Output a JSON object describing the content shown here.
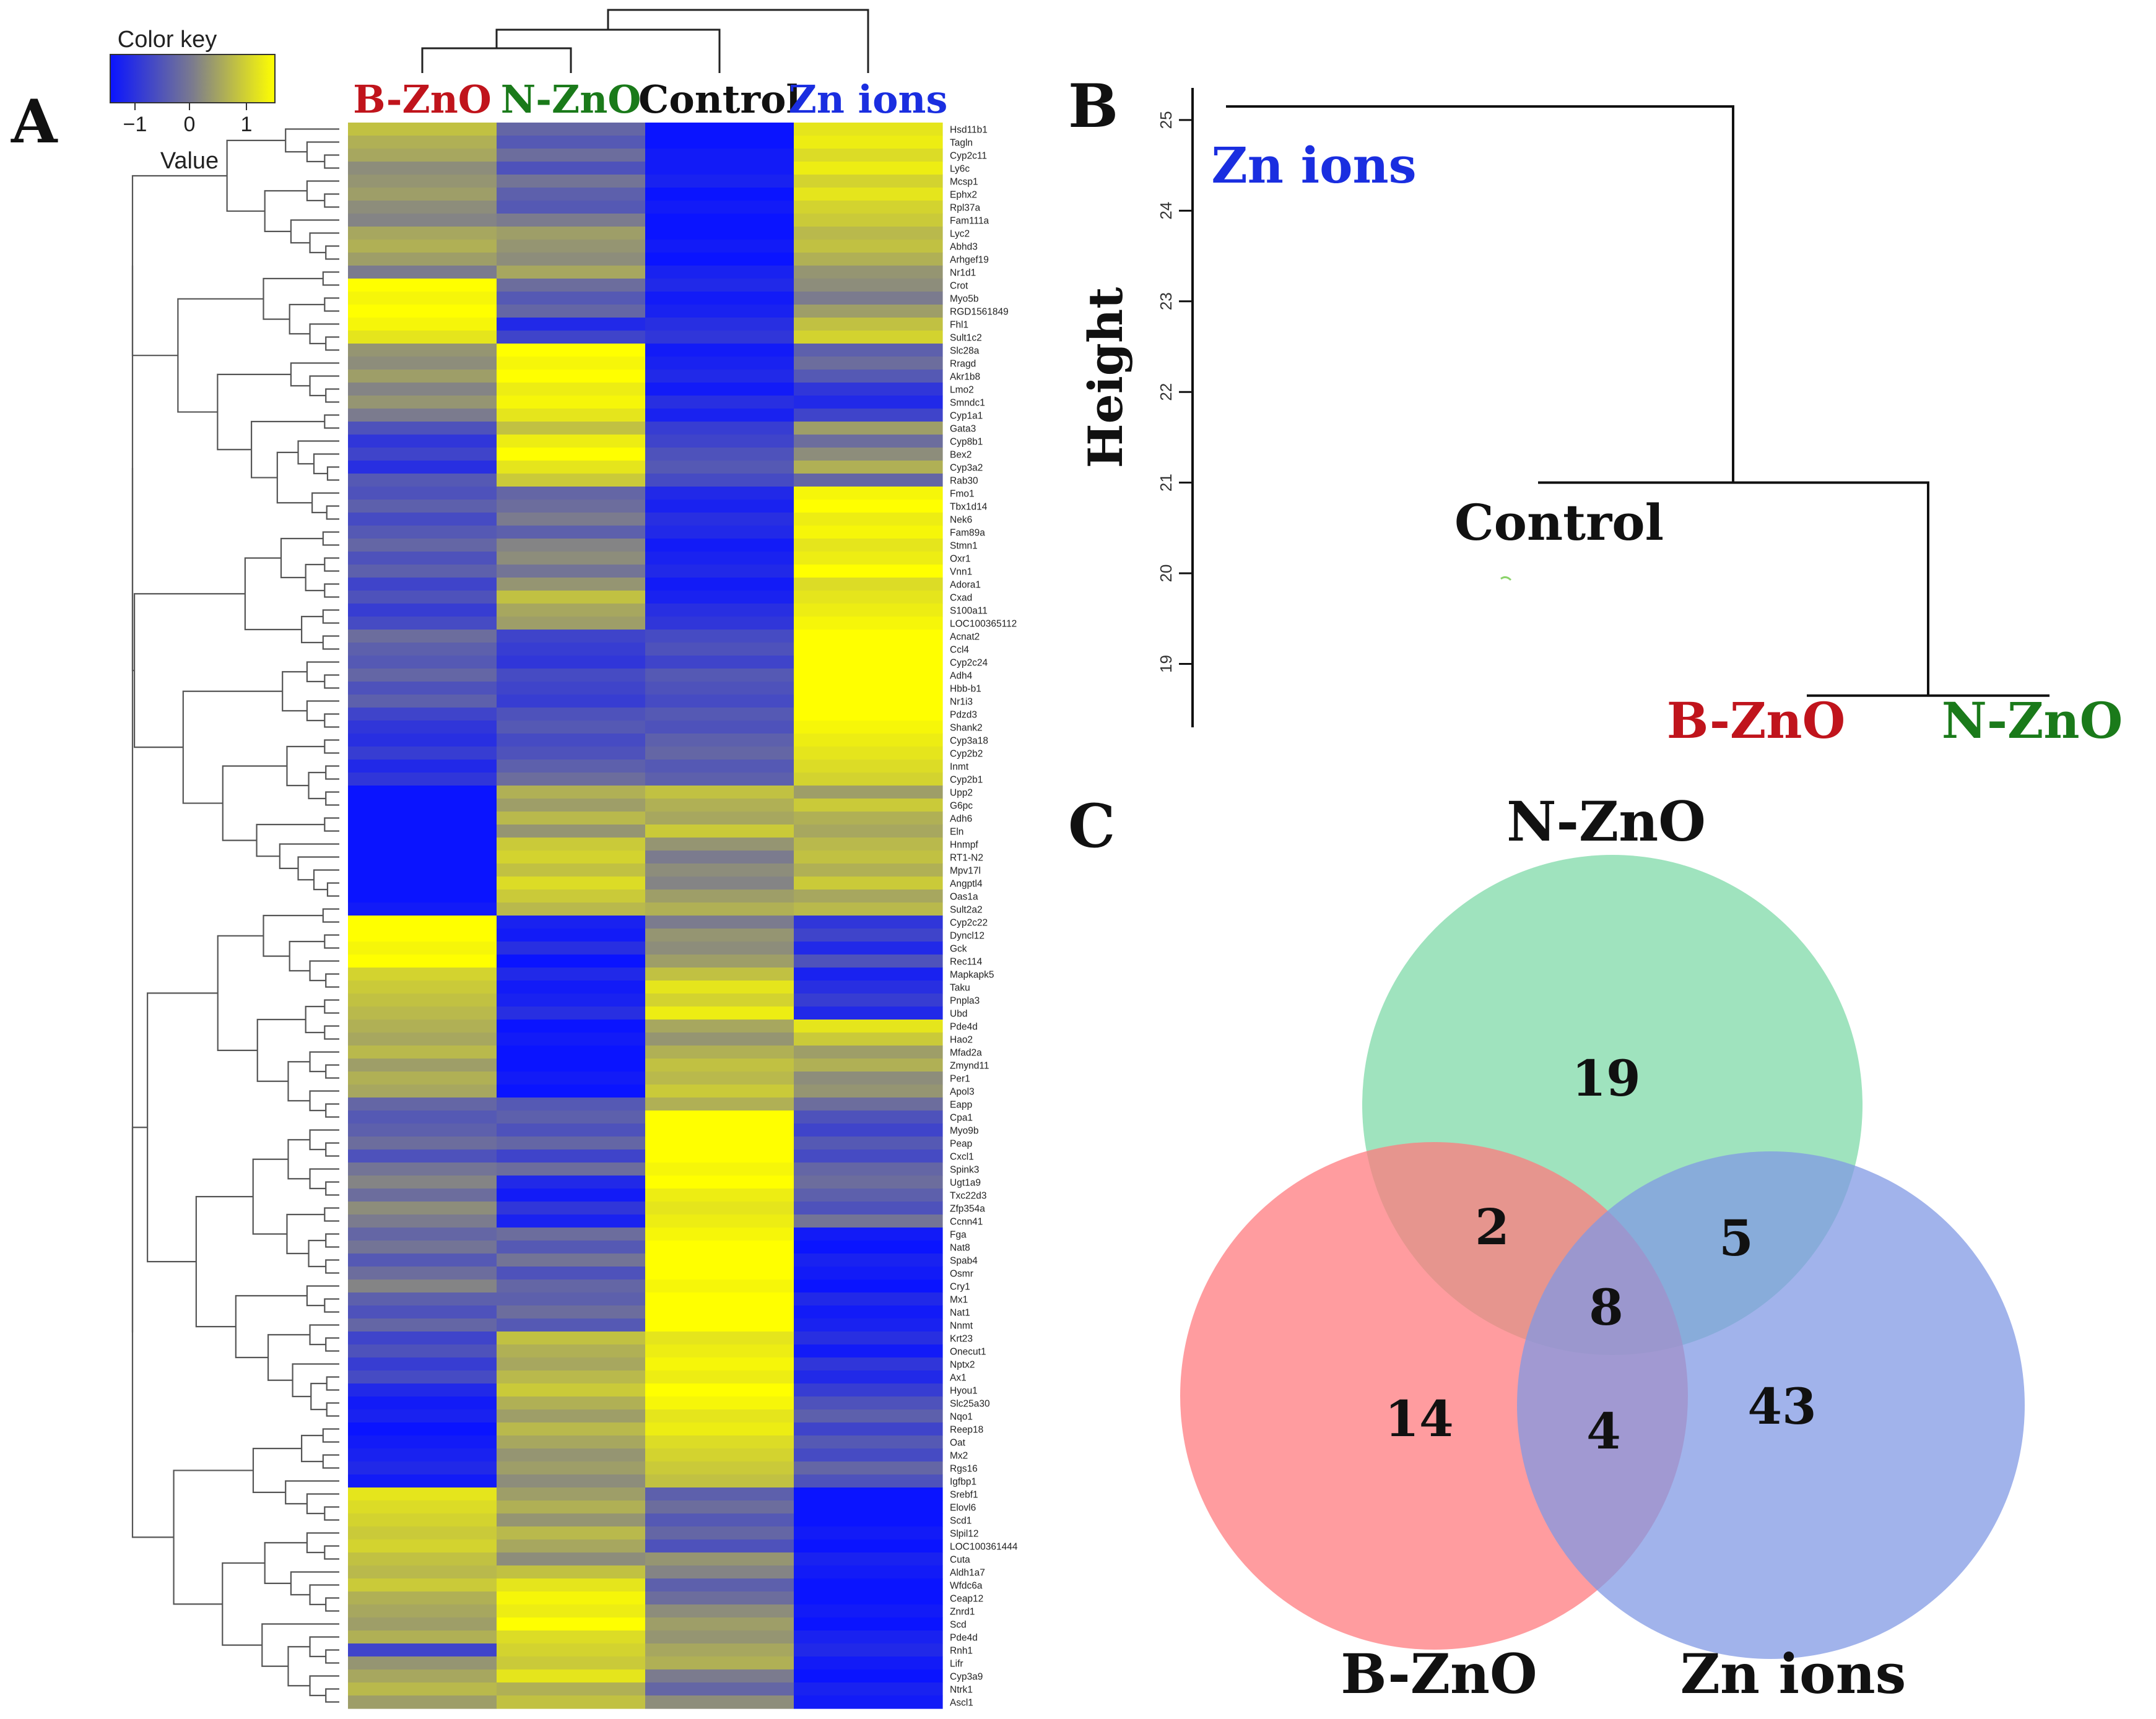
{
  "panels": {
    "a": {
      "letter": "A"
    },
    "b": {
      "letter": "B"
    },
    "c": {
      "letter": "C"
    }
  },
  "color_key": {
    "title": "Color key",
    "value_label": "Value",
    "ticks": [
      "−1",
      "0",
      "1"
    ],
    "colors": {
      "low": "#0a14ff",
      "mid": "#7b7b8e",
      "high": "#ffff00"
    }
  },
  "chart_data": [
    {
      "type": "heatmap",
      "title": "",
      "columns": [
        {
          "name": "B-ZnO",
          "color": "#c0141c"
        },
        {
          "name": "N-ZnO",
          "color": "#1a7a1a"
        },
        {
          "name": "Control",
          "color": "#111111"
        },
        {
          "name": "Zn ions",
          "color": "#1a2ee0"
        }
      ],
      "value_range": [
        -1.5,
        1.5
      ],
      "rows": [
        [
          "Hsd11b1",
          0.8,
          -0.3,
          -1.5,
          1.2
        ],
        [
          "Tagln",
          0.6,
          -0.5,
          -1.5,
          1.3
        ],
        [
          "Cyp2c11",
          0.5,
          -0.2,
          -1.4,
          1.1
        ],
        [
          "Ly6c",
          0.2,
          -0.6,
          -1.4,
          1.3
        ],
        [
          "Mcsp1",
          0.3,
          -0.1,
          -1.3,
          1.0
        ],
        [
          "Ephx2",
          0.4,
          -0.4,
          -1.5,
          1.2
        ],
        [
          "Rpl37a",
          0.2,
          -0.5,
          -1.4,
          1.0
        ],
        [
          "Fam111a",
          0.1,
          0.0,
          -1.5,
          0.9
        ],
        [
          "Lyc2",
          0.5,
          0.4,
          -1.5,
          0.7
        ],
        [
          "Abhd3",
          0.6,
          0.3,
          -1.4,
          0.8
        ],
        [
          "Arhgef19",
          0.4,
          0.2,
          -1.5,
          0.6
        ],
        [
          "Nr1d1",
          0.0,
          0.5,
          -1.3,
          0.3
        ],
        [
          "Crot",
          1.5,
          -0.2,
          -1.2,
          0.2
        ],
        [
          "Myo5b",
          1.4,
          -0.5,
          -1.4,
          0.0
        ],
        [
          "RGD1561849",
          1.5,
          -0.3,
          -1.3,
          0.4
        ],
        [
          "Fhl1",
          1.4,
          -1.2,
          -1.1,
          0.8
        ],
        [
          "Sult1c2",
          1.2,
          -0.8,
          -1.0,
          1.0
        ],
        [
          "Slc28a",
          0.3,
          1.5,
          -1.4,
          -0.4
        ],
        [
          "Rragd",
          0.2,
          1.4,
          -1.3,
          -0.2
        ],
        [
          "Akr1b8",
          0.4,
          1.5,
          -1.2,
          -0.5
        ],
        [
          "Lmo2",
          0.1,
          1.3,
          -1.4,
          -1.0
        ],
        [
          "Smndc1",
          0.3,
          1.4,
          -1.1,
          -1.2
        ],
        [
          "Cyp1a1",
          0.0,
          1.2,
          -1.3,
          -0.8
        ],
        [
          "Gata3",
          -0.6,
          0.8,
          -0.9,
          0.4
        ],
        [
          "Cyp8b1",
          -1.0,
          1.3,
          -0.8,
          -0.2
        ],
        [
          "Bex2",
          -0.8,
          1.6,
          -0.6,
          0.2
        ],
        [
          "Cyp3a2",
          -1.1,
          1.2,
          -0.5,
          0.6
        ],
        [
          "Rab30",
          -0.5,
          0.9,
          -0.7,
          -0.3
        ],
        [
          "Fmo1",
          -0.6,
          -0.3,
          -1.2,
          1.4
        ],
        [
          "Tbx1d14",
          -0.4,
          -0.2,
          -1.3,
          1.5
        ],
        [
          "Nek6",
          -0.7,
          0.0,
          -1.1,
          1.3
        ],
        [
          "Fam89a",
          -0.5,
          -0.4,
          -1.2,
          1.4
        ],
        [
          "Stmn1",
          -0.3,
          0.1,
          -1.4,
          1.2
        ],
        [
          "Oxr1",
          -0.6,
          0.2,
          -1.3,
          1.3
        ],
        [
          "Vnn1",
          -0.4,
          -0.1,
          -1.2,
          1.5
        ],
        [
          "Adora1",
          -0.8,
          0.3,
          -1.4,
          1.1
        ],
        [
          "Cxad",
          -0.6,
          0.8,
          -1.3,
          1.2
        ],
        [
          "S100a11",
          -0.9,
          0.5,
          -1.1,
          1.3
        ],
        [
          "LOC100365112",
          -0.7,
          0.4,
          -1.0,
          1.4
        ],
        [
          "Acnat2",
          -0.2,
          -0.8,
          -0.7,
          1.5
        ],
        [
          "Ccl4",
          -0.4,
          -0.9,
          -0.6,
          1.6
        ],
        [
          "Cyp2c24",
          -0.5,
          -1.0,
          -0.8,
          1.5
        ],
        [
          "Adh4",
          -0.3,
          -0.7,
          -0.5,
          1.6
        ],
        [
          "Hbb-b1",
          -0.6,
          -0.8,
          -0.6,
          1.5
        ],
        [
          "Nr1i3",
          -0.4,
          -0.9,
          -0.7,
          1.6
        ],
        [
          "Pdzd3",
          -0.8,
          -0.6,
          -0.5,
          1.5
        ],
        [
          "Shank2",
          -1.0,
          -0.5,
          -0.6,
          1.4
        ],
        [
          "Cyp3a18",
          -1.1,
          -0.7,
          -0.4,
          1.3
        ],
        [
          "Cyp2b2",
          -0.9,
          -0.6,
          -0.3,
          1.2
        ],
        [
          "Inmt",
          -1.2,
          -0.4,
          -0.5,
          1.1
        ],
        [
          "Cyp2b1",
          -1.0,
          -0.2,
          -0.4,
          1.0
        ],
        [
          "Upp2",
          -1.5,
          0.6,
          0.8,
          0.4
        ],
        [
          "G6pc",
          -1.6,
          0.4,
          0.6,
          0.9
        ],
        [
          "Adh6",
          -1.5,
          0.7,
          0.5,
          0.6
        ],
        [
          "Eln",
          -1.5,
          0.3,
          0.9,
          0.5
        ],
        [
          "Hnmpf",
          -1.6,
          0.9,
          0.3,
          0.7
        ],
        [
          "RT1-N2",
          -1.5,
          1.0,
          0.0,
          0.8
        ],
        [
          "Mpv17l",
          -1.6,
          0.8,
          0.2,
          0.6
        ],
        [
          "Angptl4",
          -1.5,
          1.1,
          0.1,
          0.9
        ],
        [
          "Oas1a",
          -1.5,
          0.9,
          0.4,
          0.5
        ],
        [
          "Sult2a2",
          -1.4,
          0.7,
          0.6,
          0.7
        ],
        [
          "Cyp2c22",
          1.5,
          -1.3,
          0.0,
          -1.0
        ],
        [
          "Dyncl12",
          1.6,
          -1.4,
          0.3,
          -0.8
        ],
        [
          "Gck",
          1.4,
          -1.1,
          0.2,
          -1.2
        ],
        [
          "Rec114",
          1.5,
          -1.5,
          0.4,
          -0.6
        ],
        [
          "Mapkapk5",
          1.0,
          -1.2,
          0.8,
          -1.3
        ],
        [
          "Taku",
          0.9,
          -1.4,
          1.2,
          -1.1
        ],
        [
          "Pnpla3",
          0.8,
          -1.3,
          1.0,
          -0.9
        ],
        [
          "Ubd",
          0.7,
          -1.1,
          1.3,
          -1.2
        ],
        [
          "Pde4d",
          0.6,
          -1.5,
          0.5,
          1.2
        ],
        [
          "Hao2",
          0.5,
          -1.4,
          0.3,
          0.9
        ],
        [
          "Mfad2a",
          0.7,
          -1.6,
          0.6,
          0.4
        ],
        [
          "Zmynd11",
          0.4,
          -1.5,
          0.8,
          0.6
        ],
        [
          "Per1",
          0.6,
          -1.4,
          0.7,
          0.2
        ],
        [
          "Apol3",
          0.5,
          -1.6,
          0.9,
          0.3
        ],
        [
          "Eapp",
          -0.3,
          -0.5,
          0.6,
          -0.2
        ],
        [
          "Cpa1",
          -0.5,
          -0.4,
          1.6,
          -0.6
        ],
        [
          "Myo9b",
          -0.4,
          -0.6,
          1.5,
          -0.8
        ],
        [
          "Peap",
          -0.2,
          -0.3,
          1.6,
          -0.5
        ],
        [
          "Cxcl1",
          -0.6,
          -0.8,
          1.5,
          -0.7
        ],
        [
          "Spink3",
          -0.1,
          -0.2,
          1.4,
          -0.3
        ],
        [
          "Ugt1a9",
          0.1,
          -1.2,
          1.5,
          -0.2
        ],
        [
          "Txc22d3",
          -0.2,
          -1.4,
          1.3,
          -0.4
        ],
        [
          "Zfp354a",
          0.2,
          -1.0,
          1.2,
          -0.6
        ],
        [
          "Ccnn41",
          0.0,
          -1.3,
          1.3,
          -0.1
        ],
        [
          "Fga",
          -0.3,
          -0.2,
          1.4,
          -1.4
        ],
        [
          "Nat8",
          -0.1,
          -0.5,
          1.5,
          -1.5
        ],
        [
          "Spab4",
          -0.5,
          -0.1,
          1.6,
          -1.3
        ],
        [
          "Osmr",
          -0.2,
          -0.6,
          1.5,
          -1.4
        ],
        [
          "Cry1",
          0.1,
          -0.3,
          1.4,
          -1.5
        ],
        [
          "Mx1",
          -0.4,
          -0.4,
          1.5,
          -1.2
        ],
        [
          "Nat1",
          -0.6,
          -0.2,
          1.6,
          -1.4
        ],
        [
          "Nnmt",
          -0.3,
          -0.5,
          1.5,
          -1.3
        ],
        [
          "Krt23",
          -0.8,
          0.8,
          1.2,
          -1.1
        ],
        [
          "Onecut1",
          -0.6,
          0.6,
          1.3,
          -1.4
        ],
        [
          "Nptx2",
          -0.9,
          0.5,
          1.4,
          -1.0
        ],
        [
          "Ax1",
          -0.7,
          0.7,
          1.3,
          -1.2
        ],
        [
          "Hyou1",
          -1.2,
          0.9,
          1.5,
          -0.9
        ],
        [
          "Slc25a30",
          -1.4,
          0.6,
          1.4,
          -0.6
        ],
        [
          "Nqo1",
          -1.3,
          0.4,
          1.2,
          -0.4
        ],
        [
          "Reep18",
          -1.5,
          0.7,
          1.3,
          -0.8
        ],
        [
          "Oat",
          -1.4,
          0.5,
          1.1,
          -0.5
        ],
        [
          "Mx2",
          -1.3,
          0.3,
          1.0,
          -0.7
        ],
        [
          "Rgs16",
          -1.2,
          0.4,
          0.9,
          -0.3
        ],
        [
          "Igfbp1",
          -1.4,
          0.2,
          0.8,
          -0.6
        ],
        [
          "Srebf1",
          1.2,
          0.4,
          -0.4,
          -1.6
        ],
        [
          "Elovl6",
          1.1,
          0.6,
          -0.2,
          -1.5
        ],
        [
          "Scd1",
          1.0,
          0.3,
          -0.5,
          -1.6
        ],
        [
          "Slpil12",
          0.9,
          0.7,
          -0.3,
          -1.4
        ],
        [
          "LOC100361444",
          1.0,
          0.5,
          -0.6,
          -1.5
        ],
        [
          "Cuta",
          0.8,
          0.2,
          0.3,
          -1.3
        ],
        [
          "Aldh1a7",
          0.7,
          0.8,
          0.1,
          -1.4
        ],
        [
          "Wfdc6a",
          0.9,
          1.2,
          -0.4,
          -1.5
        ],
        [
          "Ceap12",
          0.6,
          1.4,
          -0.2,
          -1.6
        ],
        [
          "Znrd1",
          0.5,
          1.3,
          0.2,
          -1.4
        ],
        [
          "Scd",
          0.4,
          1.5,
          0.4,
          -1.5
        ],
        [
          "Pde4d",
          0.6,
          1.1,
          0.3,
          -1.3
        ],
        [
          "Rnh1",
          -0.8,
          1.0,
          0.5,
          -1.2
        ],
        [
          "Lifr",
          0.3,
          0.9,
          0.6,
          -1.4
        ],
        [
          "Cyp3a9",
          0.5,
          1.2,
          0.0,
          -1.5
        ],
        [
          "Ntrk1",
          0.7,
          0.6,
          -0.3,
          -1.3
        ],
        [
          "Ascl1",
          0.4,
          0.8,
          0.2,
          -1.4
        ]
      ]
    },
    {
      "type": "dendrogram",
      "ylabel": "Height",
      "ylim": [
        18.3,
        25.3
      ],
      "ticks": [
        19,
        20,
        21,
        22,
        23,
        24,
        25
      ],
      "leaves": [
        {
          "name": "Zn ions",
          "color": "#1a2ee0"
        },
        {
          "name": "Control",
          "color": "#111111"
        },
        {
          "name": "B-ZnO",
          "color": "#c0141c"
        },
        {
          "name": "N-ZnO",
          "color": "#1a7a1a"
        }
      ],
      "merges": [
        {
          "members": [
            "B-ZnO",
            "N-ZnO"
          ],
          "height": 18.65
        },
        {
          "members": [
            "Control",
            "B-ZnO + N-ZnO"
          ],
          "height": 21.0
        },
        {
          "members": [
            "Zn ions",
            "rest"
          ],
          "height": 25.15
        }
      ]
    },
    {
      "type": "venn",
      "sets": [
        {
          "name": "N-ZnO",
          "color": "#7dd9a7"
        },
        {
          "name": "B-ZnO",
          "color": "#ff7a7d"
        },
        {
          "name": "Zn ions",
          "color": "#8098e4"
        }
      ],
      "regions": {
        "n_only": 19,
        "b_only": 14,
        "zn_only": 43,
        "n_b": 2,
        "n_zn": 5,
        "b_zn": 4,
        "all": 8
      }
    }
  ]
}
